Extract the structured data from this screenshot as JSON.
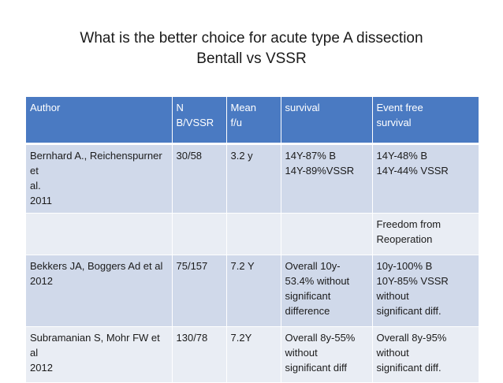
{
  "slide": {
    "title_line1": "What is the better choice for acute type A dissection",
    "title_line2": "Bentall vs VSSR"
  },
  "table": {
    "headers": [
      "Author",
      "N\nB/VSSR",
      "Mean\nf/u",
      "survival",
      "Event free\nsurvival"
    ],
    "rows": [
      [
        "Bernhard A., Reichenspurner et\nal.\n2011",
        "30/58",
        "3.2 y",
        "14Y-87% B\n14Y-89%VSSR",
        "14Y-48% B\n14Y-44% VSSR"
      ],
      [
        "",
        "",
        "",
        "",
        "Freedom from\nReoperation"
      ],
      [
        "Bekkers JA, Boggers Ad et al\n2012",
        "75/157",
        "7.2 Y",
        "Overall 10y-\n53.4% without\nsignificant\ndifference",
        "10y-100% B\n10Y-85% VSSR\nwithout\nsignificant diff."
      ],
      [
        "Subramanian S, Mohr FW et al\n2012",
        "130/78",
        "7.2Y",
        "Overall 8y-55%\nwithout\nsignificant diff",
        "Overall 8y-95%\nwithout\nsignificant diff."
      ]
    ]
  }
}
